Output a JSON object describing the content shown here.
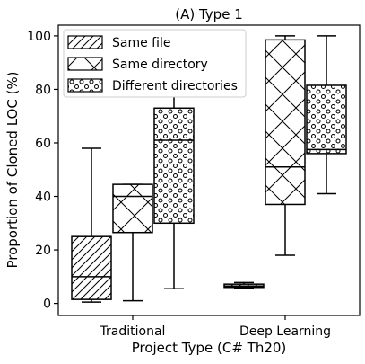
{
  "chart_data": {
    "type": "box",
    "title": "(A) Type 1",
    "xlabel": "Project Type (C# Th20)",
    "ylabel": "Proportion of Cloned LOC (%)",
    "ylim": [
      -4.5,
      104
    ],
    "yticks": [
      "0",
      "20",
      "40",
      "60",
      "80",
      "100"
    ],
    "categories": [
      "Traditional",
      "Deep Learning"
    ],
    "legend_position": "top-left",
    "series": [
      {
        "name": "Same file",
        "hatch": "diagonal",
        "boxes": [
          {
            "category": "Traditional",
            "whisker_low": 0.5,
            "q1": 1.5,
            "median": 10,
            "q3": 25,
            "whisker_high": 58
          },
          {
            "category": "Deep Learning",
            "whisker_low": 5.8,
            "q1": 6,
            "median": 6.5,
            "q3": 7.2,
            "whisker_high": 7.8
          }
        ]
      },
      {
        "name": "Same directory",
        "hatch": "cross",
        "boxes": [
          {
            "category": "Traditional",
            "whisker_low": 1,
            "q1": 26.5,
            "median": 40,
            "q3": 44.5,
            "whisker_high": 44.5
          },
          {
            "category": "Deep Learning",
            "whisker_low": 18,
            "q1": 37,
            "median": 51,
            "q3": 98.5,
            "whisker_high": 100
          }
        ]
      },
      {
        "name": "Different directories",
        "hatch": "dots",
        "boxes": [
          {
            "category": "Traditional",
            "whisker_low": 5.5,
            "q1": 30,
            "median": 61,
            "q3": 73,
            "whisker_high": 99
          },
          {
            "category": "Deep Learning",
            "whisker_low": 41,
            "q1": 56,
            "median": 57.5,
            "q3": 81.5,
            "whisker_high": 100
          }
        ]
      }
    ]
  }
}
